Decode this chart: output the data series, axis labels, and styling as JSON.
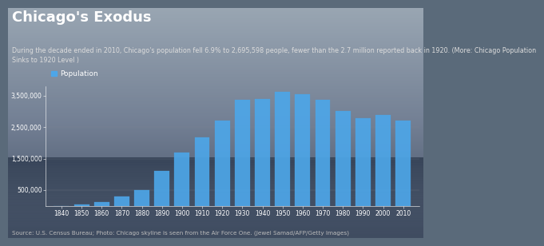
{
  "title": "Chicago's Exodus",
  "subtitle": "During the decade ended in 2010, Chicago's population fell 6.9% to 2,695,598 people, fewer than the 2.7 million reported back in 1920. (More: Chicago Population\nSinks to 1920 Level )",
  "source": "Source: U.S. Census Bureau; Photo: Chicago skyline is seen from the Air Force One. (Jewel Samad/AFP/Getty Images)",
  "legend_label": "Population",
  "years": [
    1840,
    1850,
    1860,
    1870,
    1880,
    1890,
    1900,
    1910,
    1920,
    1930,
    1940,
    1950,
    1960,
    1970,
    1980,
    1990,
    2000,
    2010
  ],
  "population": [
    4470,
    29963,
    112172,
    298977,
    503185,
    1099850,
    1698575,
    2185283,
    2701705,
    3376438,
    3396808,
    3620962,
    3550404,
    3366957,
    3005072,
    2783726,
    2896016,
    2695598
  ],
  "bar_color": "#4da6e8",
  "bg_color_top": "#8a9aaa",
  "bg_color_mid": "#6a7a8a",
  "bg_color_bot": "#3a4a5a",
  "title_color": "white",
  "subtitle_color": "#dddddd",
  "source_color": "#bbbbbb",
  "tick_color": "white",
  "grid_color": "#888899",
  "ylim": [
    0,
    3800000
  ],
  "yticks": [
    500000,
    1500000,
    2500000,
    3500000
  ],
  "ytick_labels": [
    "500,000",
    "1,500,000",
    "2,500,000",
    "3,500,000"
  ],
  "title_fontsize": 13,
  "subtitle_fontsize": 5.8,
  "source_fontsize": 5.2,
  "legend_fontsize": 6.5,
  "tick_fontsize": 5.5
}
